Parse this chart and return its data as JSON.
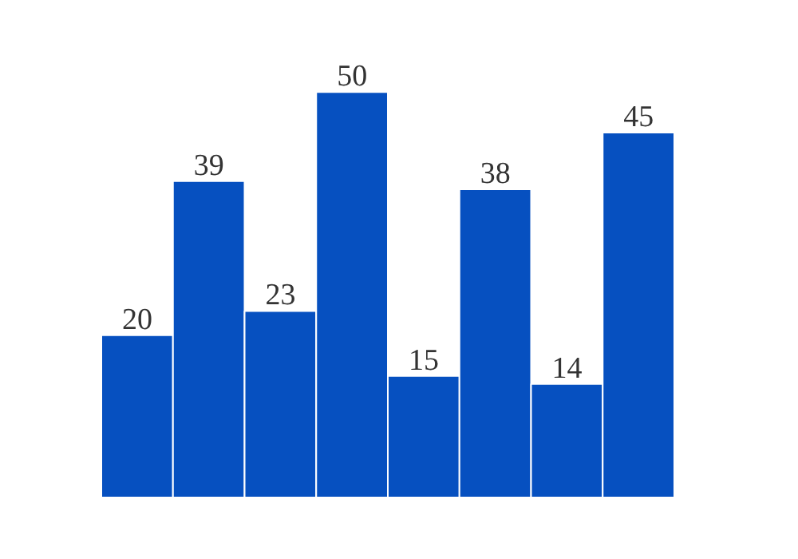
{
  "chart_data": {
    "type": "bar",
    "categories": [
      null,
      null,
      null,
      null,
      null,
      null,
      null,
      null
    ],
    "values": [
      20,
      39,
      23,
      50,
      15,
      38,
      14,
      45
    ],
    "color": "#0650c0",
    "data_labels": true
  }
}
